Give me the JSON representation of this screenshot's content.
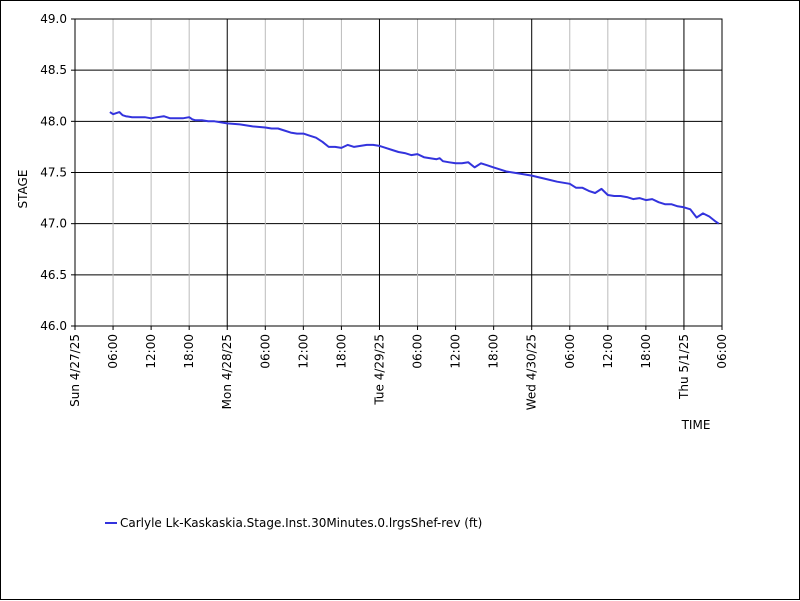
{
  "chart_data": {
    "type": "line",
    "xlabel": "TIME",
    "ylabel": "STAGE",
    "ylim": [
      46.0,
      49.0
    ],
    "xlim": [
      "2025-04-27 00:00",
      "2025-05-01 06:00"
    ],
    "y_ticks": [
      "46.0",
      "46.5",
      "47.0",
      "47.5",
      "48.0",
      "48.5",
      "49.0"
    ],
    "x_ticks": [
      {
        "label": "Sun 4/27/25",
        "at": "2025-04-27 00:00",
        "major": true
      },
      {
        "label": "06:00",
        "at": "2025-04-27 06:00",
        "major": false
      },
      {
        "label": "12:00",
        "at": "2025-04-27 12:00",
        "major": false
      },
      {
        "label": "18:00",
        "at": "2025-04-27 18:00",
        "major": false
      },
      {
        "label": "Mon 4/28/25",
        "at": "2025-04-28 00:00",
        "major": true
      },
      {
        "label": "06:00",
        "at": "2025-04-28 06:00",
        "major": false
      },
      {
        "label": "12:00",
        "at": "2025-04-28 12:00",
        "major": false
      },
      {
        "label": "18:00",
        "at": "2025-04-28 18:00",
        "major": false
      },
      {
        "label": "Tue 4/29/25",
        "at": "2025-04-29 00:00",
        "major": true
      },
      {
        "label": "06:00",
        "at": "2025-04-29 06:00",
        "major": false
      },
      {
        "label": "12:00",
        "at": "2025-04-29 12:00",
        "major": false
      },
      {
        "label": "18:00",
        "at": "2025-04-29 18:00",
        "major": false
      },
      {
        "label": "Wed 4/30/25",
        "at": "2025-04-30 00:00",
        "major": true
      },
      {
        "label": "06:00",
        "at": "2025-04-30 06:00",
        "major": false
      },
      {
        "label": "12:00",
        "at": "2025-04-30 12:00",
        "major": false
      },
      {
        "label": "18:00",
        "at": "2025-04-30 18:00",
        "major": false
      },
      {
        "label": "Thu 5/1/25",
        "at": "2025-05-01 00:00",
        "major": true
      },
      {
        "label": "06:00",
        "at": "2025-05-01 06:00",
        "major": false
      }
    ],
    "grid": true,
    "legend_position": "bottom-left",
    "series": [
      {
        "name": "Carlyle Lk-Kaskaskia.Stage.Inst.30Minutes.0.lrgsShef-rev (ft)",
        "color": "#3333dd",
        "x": [
          "2025-04-27 05:30",
          "2025-04-27 06:00",
          "2025-04-27 07:00",
          "2025-04-27 07:30",
          "2025-04-27 08:00",
          "2025-04-27 09:00",
          "2025-04-27 10:00",
          "2025-04-27 11:00",
          "2025-04-27 12:00",
          "2025-04-27 13:00",
          "2025-04-27 14:00",
          "2025-04-27 15:00",
          "2025-04-27 16:00",
          "2025-04-27 17:00",
          "2025-04-27 18:00",
          "2025-04-27 18:30",
          "2025-04-27 19:00",
          "2025-04-27 20:00",
          "2025-04-27 21:00",
          "2025-04-27 22:00",
          "2025-04-28 00:00",
          "2025-04-28 02:00",
          "2025-04-28 04:00",
          "2025-04-28 06:00",
          "2025-04-28 07:00",
          "2025-04-28 08:00",
          "2025-04-28 09:00",
          "2025-04-28 10:00",
          "2025-04-28 11:00",
          "2025-04-28 12:00",
          "2025-04-28 13:00",
          "2025-04-28 14:00",
          "2025-04-28 15:00",
          "2025-04-28 16:00",
          "2025-04-28 17:00",
          "2025-04-28 18:00",
          "2025-04-28 19:00",
          "2025-04-28 20:00",
          "2025-04-28 21:00",
          "2025-04-28 22:00",
          "2025-04-28 23:00",
          "2025-04-29 00:00",
          "2025-04-29 01:00",
          "2025-04-29 02:00",
          "2025-04-29 03:00",
          "2025-04-29 04:00",
          "2025-04-29 05:00",
          "2025-04-29 06:00",
          "2025-04-29 07:00",
          "2025-04-29 08:00",
          "2025-04-29 09:00",
          "2025-04-29 09:30",
          "2025-04-29 10:00",
          "2025-04-29 11:00",
          "2025-04-29 12:00",
          "2025-04-29 13:00",
          "2025-04-29 14:00",
          "2025-04-29 15:00",
          "2025-04-29 16:00",
          "2025-04-29 17:00",
          "2025-04-29 18:00",
          "2025-04-29 19:00",
          "2025-04-29 20:00",
          "2025-04-29 22:00",
          "2025-04-30 00:00",
          "2025-04-30 02:00",
          "2025-04-30 04:00",
          "2025-04-30 06:00",
          "2025-04-30 07:00",
          "2025-04-30 08:00",
          "2025-04-30 09:00",
          "2025-04-30 10:00",
          "2025-04-30 11:00",
          "2025-04-30 12:00",
          "2025-04-30 13:00",
          "2025-04-30 14:00",
          "2025-04-30 15:00",
          "2025-04-30 16:00",
          "2025-04-30 17:00",
          "2025-04-30 18:00",
          "2025-04-30 19:00",
          "2025-04-30 20:00",
          "2025-04-30 21:00",
          "2025-04-30 22:00",
          "2025-04-30 23:00",
          "2025-05-01 00:00",
          "2025-05-01 01:00",
          "2025-05-01 02:00",
          "2025-05-01 03:00",
          "2025-05-01 04:00",
          "2025-05-01 05:00",
          "2025-05-01 05:30"
        ],
        "values": [
          48.09,
          48.07,
          48.09,
          48.06,
          48.05,
          48.04,
          48.04,
          48.04,
          48.03,
          48.04,
          48.05,
          48.03,
          48.03,
          48.03,
          48.04,
          48.02,
          48.01,
          48.01,
          48.0,
          48.0,
          47.98,
          47.97,
          47.95,
          47.94,
          47.93,
          47.93,
          47.91,
          47.89,
          47.88,
          47.88,
          47.86,
          47.84,
          47.8,
          47.75,
          47.75,
          47.74,
          47.77,
          47.75,
          47.76,
          47.77,
          47.77,
          47.76,
          47.74,
          47.72,
          47.7,
          47.69,
          47.67,
          47.68,
          47.65,
          47.64,
          47.63,
          47.64,
          47.61,
          47.6,
          47.59,
          47.59,
          47.6,
          47.55,
          47.59,
          47.57,
          47.55,
          47.53,
          47.51,
          47.49,
          47.47,
          47.44,
          47.41,
          47.39,
          47.35,
          47.35,
          47.32,
          47.3,
          47.34,
          47.28,
          47.27,
          47.27,
          47.26,
          47.24,
          47.25,
          47.23,
          47.24,
          47.21,
          47.19,
          47.19,
          47.17,
          47.16,
          47.14,
          47.06,
          47.1,
          47.07,
          47.02,
          47.0
        ]
      }
    ]
  }
}
